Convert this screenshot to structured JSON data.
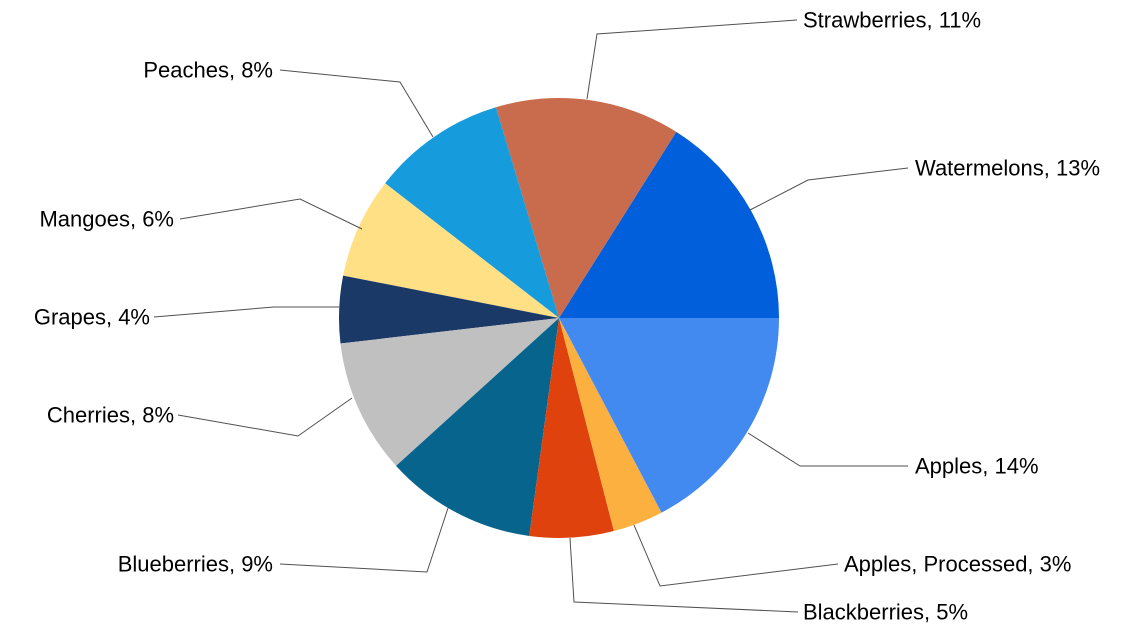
{
  "chart_data": {
    "type": "pie",
    "start_angle_deg": 0,
    "direction": "counterclockwise",
    "slices": [
      {
        "label": "Watermelons, 13%",
        "name": "Watermelons",
        "value": 13,
        "color": "#025fdc"
      },
      {
        "label": "Strawberries, 11%",
        "name": "Strawberries",
        "value": 11,
        "color": "#c96b4d"
      },
      {
        "label": "Peaches, 8%",
        "name": "Peaches",
        "value": 8,
        "color": "#169cdc"
      },
      {
        "label": "Mangoes, 6%",
        "name": "Mangoes",
        "value": 6,
        "color": "#ffe085"
      },
      {
        "label": "Grapes, 4%",
        "name": "Grapes",
        "value": 4,
        "color": "#1a3966"
      },
      {
        "label": "Cherries, 8%",
        "name": "Cherries",
        "value": 8,
        "color": "#c0c0c0"
      },
      {
        "label": "Blueberries, 9%",
        "name": "Blueberries",
        "value": 9,
        "color": "#07648d"
      },
      {
        "label": "Blackberries, 5%",
        "name": "Blackberries",
        "value": 5,
        "color": "#e0420e"
      },
      {
        "label": "Apples, Processed, 3%",
        "name": "Apples, Processed",
        "value": 3,
        "color": "#fcb040"
      },
      {
        "label": "Apples, 14%",
        "name": "Apples",
        "value": 14,
        "color": "#428aef"
      }
    ]
  }
}
